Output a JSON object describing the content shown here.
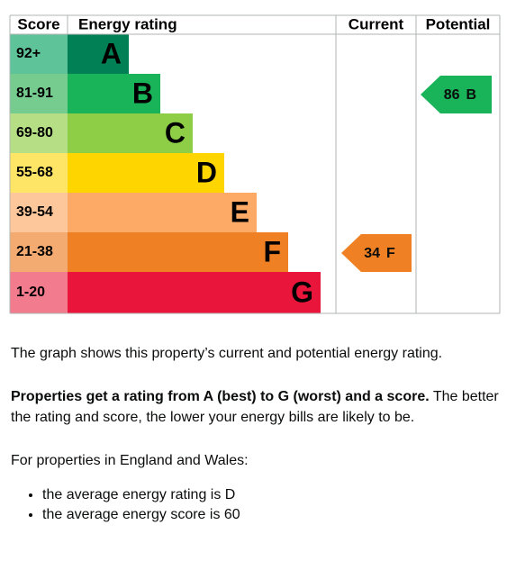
{
  "table": {
    "headers": [
      "Score",
      "Energy rating",
      "Current",
      "Potential"
    ],
    "bands": [
      {
        "score": "92+",
        "letter": "A",
        "color": "#008054",
        "score_color": "#5fc39a"
      },
      {
        "score": "81-91",
        "letter": "B",
        "color": "#19b459",
        "score_color": "#75cc8e"
      },
      {
        "score": "69-80",
        "letter": "C",
        "color": "#8dce46",
        "score_color": "#b5de85"
      },
      {
        "score": "55-68",
        "letter": "D",
        "color": "#ffd500",
        "score_color": "#ffe566"
      },
      {
        "score": "39-54",
        "letter": "E",
        "color": "#fcaa65",
        "score_color": "#fdc79b"
      },
      {
        "score": "21-38",
        "letter": "F",
        "color": "#ef8023",
        "score_color": "#f4ab72"
      },
      {
        "score": "1-20",
        "letter": "G",
        "color": "#e9153b",
        "score_color": "#f27b8d"
      }
    ],
    "current": {
      "score": 34,
      "letter": "F",
      "color": "#ef8023"
    },
    "potential": {
      "score": 86,
      "letter": "B",
      "color": "#19b459"
    }
  },
  "text": {
    "intro": "The graph shows this property’s current and potential energy rating.",
    "bold": "Properties get a rating from A (best) to G (worst) and a score.",
    "rest": "The better the rating and score, the lower your energy bills are likely to be.",
    "region": "For properties in England and Wales:",
    "bullets": [
      "the average energy rating is D",
      "the average energy score is 60"
    ]
  }
}
